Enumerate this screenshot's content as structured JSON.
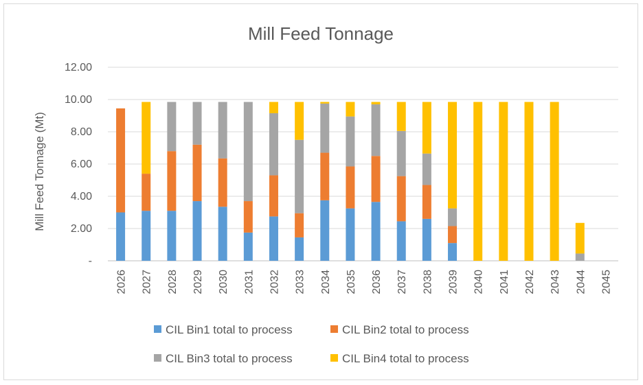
{
  "chart_data": {
    "type": "bar",
    "stacked": true,
    "title": "Mill Feed Tonnage",
    "xlabel": "",
    "ylabel": "Mill Feed Tonnage (Mt)",
    "ylim": [
      0,
      12
    ],
    "yticks": [
      0,
      2,
      4,
      6,
      8,
      10,
      12
    ],
    "ytick_labels": [
      "-",
      "2.00",
      "4.00",
      "6.00",
      "8.00",
      "10.00",
      "12.00"
    ],
    "grid": true,
    "legend_position": "bottom",
    "categories": [
      "2026",
      "2027",
      "2028",
      "2029",
      "2030",
      "2031",
      "2032",
      "2033",
      "2034",
      "2035",
      "2036",
      "2037",
      "2038",
      "2039",
      "2040",
      "2041",
      "2042",
      "2043",
      "2044",
      "2045"
    ],
    "series": [
      {
        "name": "CIL Bin1 total to process",
        "color": "#5b9bd5",
        "values": [
          3.0,
          3.1,
          3.1,
          3.7,
          3.35,
          1.75,
          2.75,
          1.45,
          3.75,
          3.25,
          3.65,
          2.45,
          2.6,
          1.1,
          0,
          0,
          0,
          0,
          0,
          0
        ]
      },
      {
        "name": "CIL Bin2 total to process",
        "color": "#ed7d31",
        "values": [
          6.45,
          2.3,
          3.7,
          3.5,
          3.0,
          1.95,
          2.55,
          1.5,
          2.95,
          2.6,
          2.85,
          2.8,
          2.1,
          1.05,
          0,
          0,
          0,
          0,
          0,
          0
        ]
      },
      {
        "name": "CIL Bin3 total to process",
        "color": "#a5a5a5",
        "values": [
          0,
          0,
          3.05,
          2.65,
          3.5,
          6.15,
          3.85,
          4.55,
          3.05,
          3.1,
          3.2,
          2.8,
          1.95,
          1.1,
          0,
          0,
          0,
          0,
          0.45,
          0
        ]
      },
      {
        "name": "CIL Bin4 total to process",
        "color": "#ffc000",
        "values": [
          0,
          4.45,
          0,
          0,
          0,
          0,
          0.7,
          2.35,
          0.1,
          0.9,
          0.15,
          1.8,
          3.2,
          6.6,
          9.85,
          9.85,
          9.85,
          9.85,
          1.9,
          0
        ]
      }
    ]
  }
}
